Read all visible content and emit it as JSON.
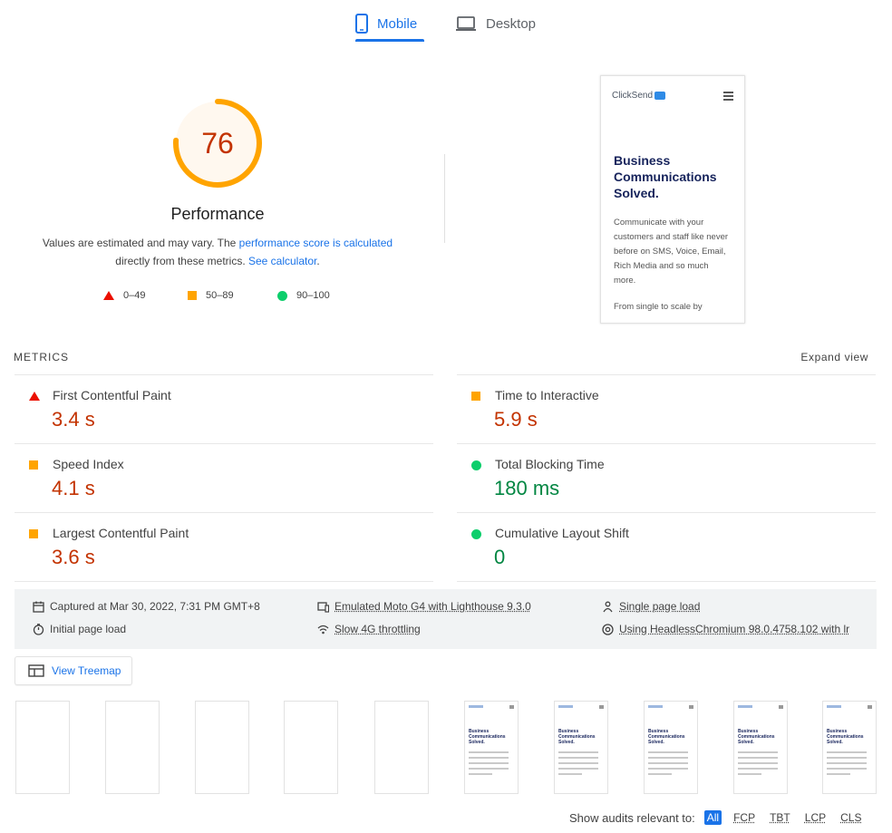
{
  "tabs": [
    {
      "label": "Mobile",
      "active": true,
      "icon": "smartphone-icon"
    },
    {
      "label": "Desktop",
      "active": false,
      "icon": "laptop-icon"
    }
  ],
  "performance": {
    "score": "76",
    "score_fraction": 0.76,
    "title": "Performance",
    "desc_prefix": "Values are estimated and may vary. The ",
    "desc_link1": "performance score is calculated",
    "desc_middle": " directly from these metrics. ",
    "desc_link2": "See calculator",
    "desc_suffix": ".",
    "colors": {
      "average": "#ffa400",
      "score_text": "#c33300"
    }
  },
  "legend": [
    {
      "range": "0–49",
      "status": "fail",
      "color": "#eb0f00"
    },
    {
      "range": "50–89",
      "status": "average",
      "color": "#ffa400"
    },
    {
      "range": "90–100",
      "status": "pass",
      "color": "#0cce6b"
    }
  ],
  "screenshot": {
    "logo": "ClickSend",
    "heading": "Business Communications Solved.",
    "body": "Communicate with your customers and staff like never before on SMS, Voice, Email, Rich Media and so much more.",
    "body2": "From single to scale by"
  },
  "metrics": {
    "section_label": "METRICS",
    "expand_label": "Expand view",
    "items": [
      {
        "title": "First Contentful Paint",
        "value": "3.4 s",
        "status": "fail"
      },
      {
        "title": "Time to Interactive",
        "value": "5.9 s",
        "status": "average"
      },
      {
        "title": "Speed Index",
        "value": "4.1 s",
        "status": "average"
      },
      {
        "title": "Total Blocking Time",
        "value": "180 ms",
        "status": "pass"
      },
      {
        "title": "Largest Contentful Paint",
        "value": "3.6 s",
        "status": "average"
      },
      {
        "title": "Cumulative Layout Shift",
        "value": "0",
        "status": "pass"
      }
    ]
  },
  "runtime": {
    "captured": "Captured at Mar 30, 2022, 7:31 PM GMT+8",
    "initial_load": "Initial page load",
    "device": "Emulated Moto G4 with Lighthouse 9.3.0",
    "throttling": "Slow 4G throttling",
    "session": "Single page load",
    "browser": "Using HeadlessChromium 98.0.4758.102 with lr"
  },
  "treemap": {
    "label": "View Treemap"
  },
  "audits_filter": {
    "label": "Show audits relevant to:",
    "chips": [
      "All",
      "FCP",
      "TBT",
      "LCP",
      "CLS"
    ]
  }
}
